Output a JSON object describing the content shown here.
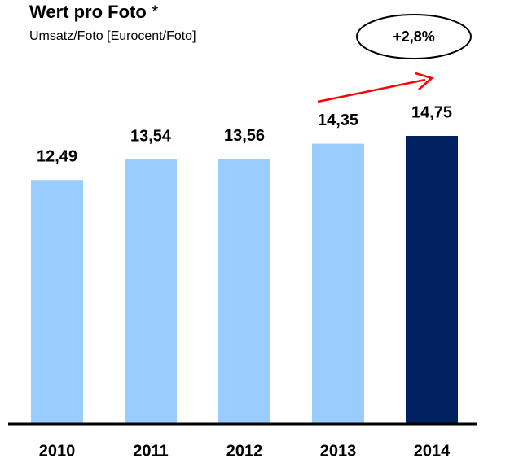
{
  "chart_data": {
    "type": "bar",
    "title": "Wert pro Foto",
    "title_marker": "*",
    "subtitle": "Umsatz/Foto [Eurocent/Foto]",
    "annotation": "+2,8%",
    "categories": [
      "2010",
      "2011",
      "2012",
      "2013",
      "2014"
    ],
    "values": [
      12.49,
      13.54,
      13.56,
      14.35,
      14.75
    ],
    "value_labels": [
      "12,49",
      "13,54",
      "13,56",
      "14,35",
      "14,75"
    ],
    "colors": [
      "#99ccff",
      "#99ccff",
      "#99ccff",
      "#99ccff",
      "#002060"
    ]
  }
}
